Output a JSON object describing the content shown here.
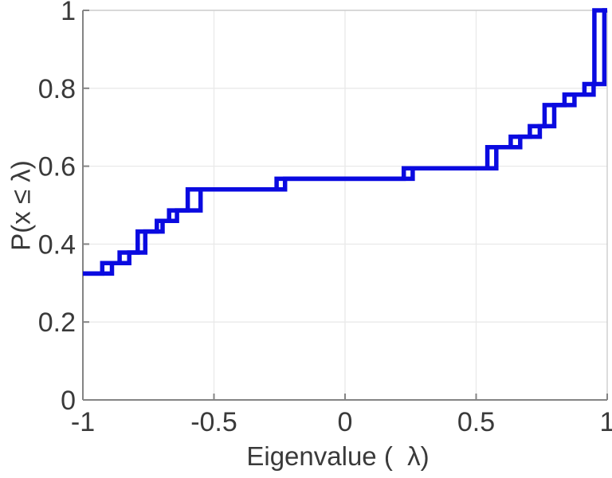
{
  "chart_data": {
    "type": "line",
    "subtype": "ecdf-stairs",
    "title": "",
    "xlabel": "Eigenvalue (  λ)",
    "ylabel": "P(x ≤ λ)",
    "xlim": [
      -1,
      1
    ],
    "ylim": [
      0,
      1
    ],
    "x_ticks": [
      -1,
      -0.5,
      0,
      0.5,
      1
    ],
    "x_tick_labels": [
      "-1",
      "-0.5",
      "0",
      "0.5",
      "1"
    ],
    "y_ticks": [
      0,
      0.2,
      0.4,
      0.6,
      0.8,
      1
    ],
    "y_tick_labels": [
      "0",
      "0.2",
      "0.4",
      "0.6",
      "0.8",
      "1"
    ],
    "grid": true,
    "legend": null,
    "line_color": "#0a0ae0",
    "axis_color": "#848484",
    "box_light_color": "#cccccc",
    "grid_color": "#e9e9e9",
    "tick_label_color": "#3a3a3a",
    "start_level": 0.3243,
    "levels": [
      0.3514,
      0.3784,
      0.4324,
      0.4595,
      0.4865,
      0.5405,
      0.5676,
      0.5946,
      0.6486,
      0.6757,
      0.7027,
      0.7568,
      0.7838,
      0.8108,
      1.0
    ],
    "series": [
      {
        "name": "ecdf-leading-edge",
        "jump_x": [
          -0.926,
          -0.86,
          -0.791,
          -0.718,
          -0.671,
          -0.6,
          -0.261,
          0.224,
          0.543,
          0.632,
          0.705,
          0.761,
          0.837,
          0.913,
          0.951
        ]
      },
      {
        "name": "ecdf-trailing-edge",
        "jump_x": [
          -0.889,
          -0.823,
          -0.762,
          -0.696,
          -0.641,
          -0.551,
          -0.229,
          0.258,
          0.577,
          0.668,
          0.743,
          0.798,
          0.875,
          0.948,
          0.989
        ]
      }
    ]
  }
}
